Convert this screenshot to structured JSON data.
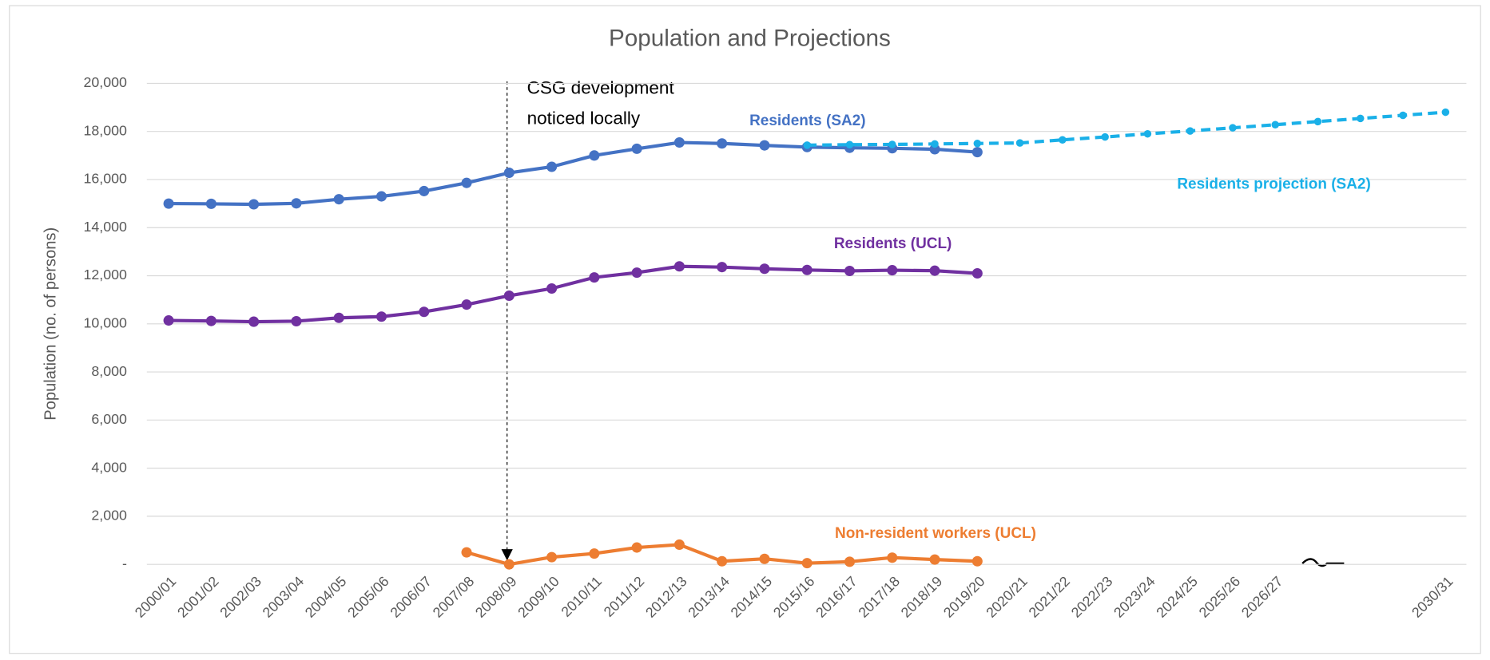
{
  "chart_data": {
    "type": "line",
    "title": "Population and Projections",
    "y_label": "Population (no. of persons)",
    "categories": [
      "2000/01",
      "2001/02",
      "2002/03",
      "2003/04",
      "2004/05",
      "2005/06",
      "2006/07",
      "2007/08",
      "2008/09",
      "2009/10",
      "2010/11",
      "2011/12",
      "2012/13",
      "2013/14",
      "2014/15",
      "2015/16",
      "2016/17",
      "2017/18",
      "2018/19",
      "2019/20",
      "2020/21",
      "2021/22",
      "2022/23",
      "2023/24",
      "2024/25",
      "2025/26",
      "2026/27",
      null,
      null,
      null,
      "2030/31"
    ],
    "ylim": [
      0,
      20000
    ],
    "yticks": [
      {
        "value": 0,
        "label": "-"
      },
      {
        "value": 2000,
        "label": "2,000"
      },
      {
        "value": 4000,
        "label": "4,000"
      },
      {
        "value": 6000,
        "label": "6,000"
      },
      {
        "value": 8000,
        "label": "8,000"
      },
      {
        "value": 10000,
        "label": "10,000"
      },
      {
        "value": 12000,
        "label": "12,000"
      },
      {
        "value": 14000,
        "label": "14,000"
      },
      {
        "value": 16000,
        "label": "16,000"
      },
      {
        "value": 18000,
        "label": "18,000"
      },
      {
        "value": 20000,
        "label": "20,000"
      }
    ],
    "grid": true,
    "annotation": [
      "CSG development",
      "noticed locally"
    ],
    "series": [
      {
        "name": "Residents (SA2)",
        "color": "#4472c4",
        "dashed": false,
        "values": [
          15000,
          14990,
          14970,
          15010,
          15180,
          15300,
          15520,
          15860,
          16280,
          16530,
          17000,
          17280,
          17540,
          17500,
          17420,
          17350,
          17320,
          17300,
          17260,
          17140,
          null,
          null,
          null,
          null,
          null,
          null,
          null,
          null,
          null,
          null,
          null
        ]
      },
      {
        "name": "Residents (UCL)",
        "color": "#7030a0",
        "dashed": false,
        "values": [
          10140,
          10120,
          10090,
          10110,
          10250,
          10300,
          10500,
          10800,
          11170,
          11470,
          11930,
          12130,
          12390,
          12360,
          12290,
          12240,
          12200,
          12230,
          12210,
          12100,
          null,
          null,
          null,
          null,
          null,
          null,
          null,
          null,
          null,
          null,
          null
        ]
      },
      {
        "name": "Non-resident workers (UCL)",
        "color": "#ed7d31",
        "dashed": false,
        "values": [
          null,
          null,
          null,
          null,
          null,
          null,
          null,
          500,
          0,
          300,
          450,
          700,
          820,
          130,
          230,
          50,
          110,
          280,
          200,
          130,
          null,
          null,
          null,
          null,
          null,
          null,
          null,
          null,
          null,
          null,
          null
        ]
      },
      {
        "name": "Residents projection (SA2)",
        "color": "#1ab0e8",
        "dashed": true,
        "values": [
          null,
          null,
          null,
          null,
          null,
          null,
          null,
          null,
          null,
          null,
          null,
          null,
          null,
          null,
          null,
          17430,
          17450,
          17460,
          17480,
          17500,
          17520,
          17650,
          17770,
          17900,
          18020,
          18150,
          18280,
          18410,
          18540,
          18670,
          18800
        ]
      }
    ]
  }
}
